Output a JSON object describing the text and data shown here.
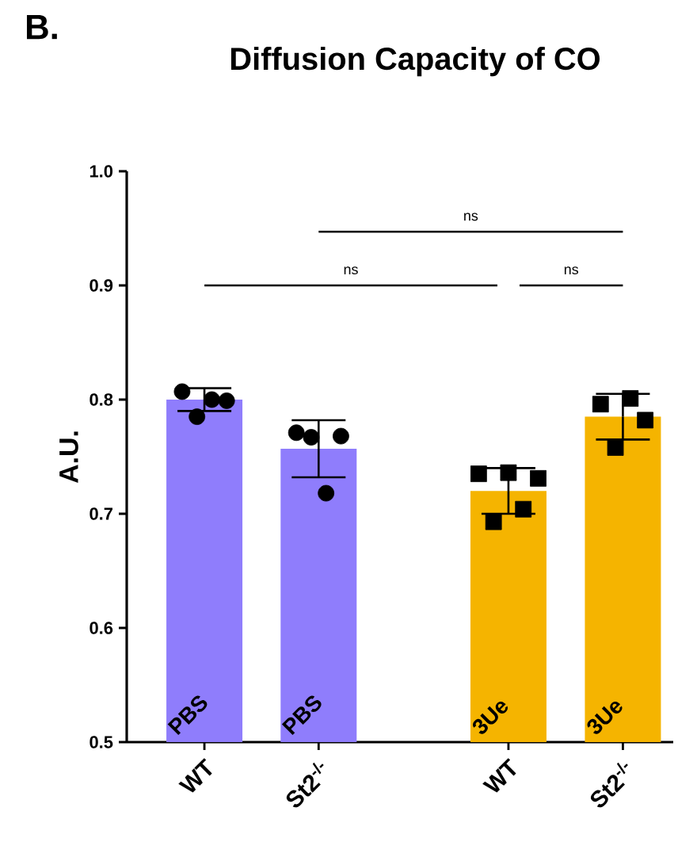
{
  "chart_data": [
    {
      "type": "bar",
      "title": "Diffusion Capacity of CO",
      "ylabel": "A.U.",
      "categories": [
        "WT",
        "St2$^{-/-}$"
      ],
      "ylim": [
        0.5,
        1.0
      ],
      "yticks": [
        0.5,
        0.6,
        0.7,
        0.8,
        0.9,
        {
          "value": 1,
          "label": "1.0"
        }
      ],
      "series": [
        {
          "name": "PBS",
          "color": "#8f7dfc",
          "values": [
            0.8,
            0.757
          ],
          "errors": [
            0.01,
            0.025
          ]
        },
        {
          "type": "scatter",
          "color": "#000000",
          "marker": "circle",
          "x": [
            "WT",
            "WT",
            "WT",
            "WT",
            "St2$^{-/-}$",
            "St2$^{-/-}$",
            "St2$^{-/-}$",
            "St2$^{-/-}$"
          ],
          "values": [
            0.807,
            0.785,
            0.8,
            0.799,
            0.771,
            0.767,
            0.718,
            0.768
          ]
        }
      ],
      "annotations": [
        "B.",
        "ns",
        "ns"
      ]
    },
    {
      "type": "bar",
      "categories": [
        "WT",
        "St2$^{-/-}$"
      ],
      "ylim": [
        0.5,
        1.0
      ],
      "tick_labels": "x",
      "series": [
        {
          "name": "3Ue",
          "color": "#f5b400",
          "values": [
            0.72,
            0.785
          ],
          "errors": [
            0.02,
            0.02
          ]
        },
        {
          "type": "scatter",
          "color": "#000000",
          "marker": "square",
          "x": [
            "WT",
            "WT",
            "WT",
            "WT",
            "WT",
            "St2$^{-/-}$",
            "St2$^{-/-}$",
            "St2$^{-/-}$",
            "St2$^{-/-}$"
          ],
          "values": [
            0.735,
            0.693,
            0.736,
            0.704,
            0.731,
            0.796,
            0.758,
            0.801,
            0.782
          ]
        }
      ],
      "annotations": [
        "ns"
      ]
    }
  ]
}
